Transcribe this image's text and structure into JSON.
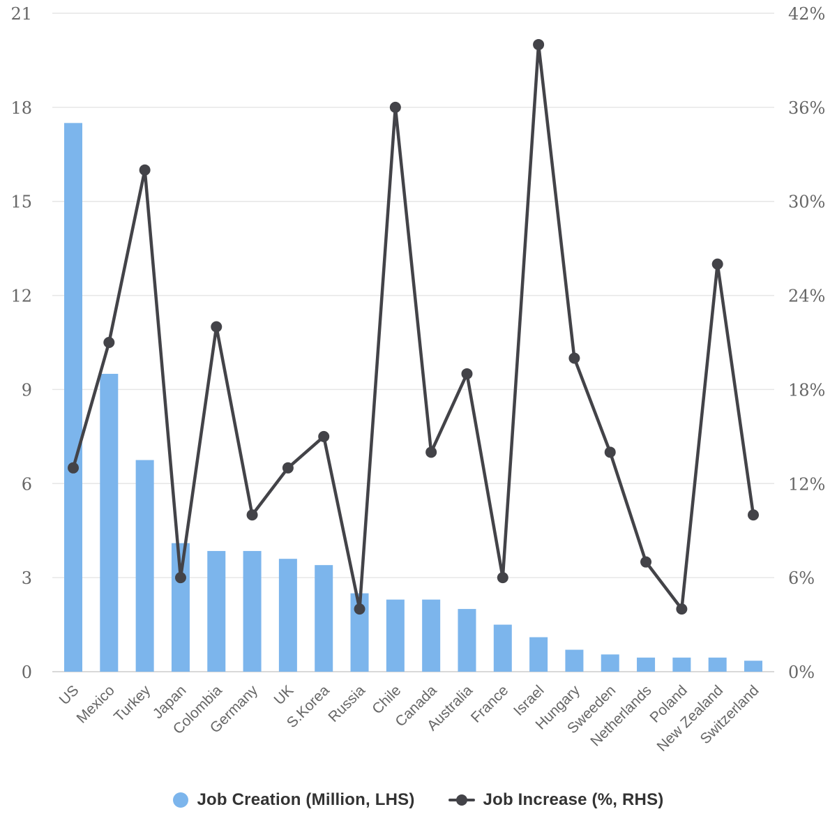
{
  "chart_data": {
    "type": "combo-bar-line",
    "title": "",
    "categories": [
      "US",
      "Mexico",
      "Turkey",
      "Japan",
      "Colombia",
      "Germany",
      "UK",
      "S.Korea",
      "Russia",
      "Chile",
      "Canada",
      "Australia",
      "France",
      "Israel",
      "Hungary",
      "Sweeden",
      "Netherlands",
      "Poland",
      "New Zealand",
      "Switzerland"
    ],
    "series": [
      {
        "name": "Job Creation (Million, LHS)",
        "type": "bar",
        "axis": "left",
        "color": "#7cb5ec",
        "values": [
          17.5,
          9.5,
          6.75,
          4.1,
          3.85,
          3.85,
          3.6,
          3.4,
          2.5,
          2.3,
          2.3,
          2.0,
          1.5,
          1.1,
          0.7,
          0.55,
          0.45,
          0.45,
          0.45,
          0.35
        ]
      },
      {
        "name": "Job Increase (%, RHS)",
        "type": "line",
        "axis": "right",
        "color": "#434348",
        "values": [
          13,
          21,
          32,
          6,
          22,
          10,
          13,
          15,
          4,
          36,
          14,
          19,
          6,
          40,
          20,
          14,
          7,
          4,
          26,
          10
        ]
      }
    ],
    "left_axis": {
      "min": 0,
      "max": 21,
      "tick_step": 3,
      "tick_labels": [
        "0",
        "3",
        "6",
        "9",
        "12",
        "15",
        "18",
        "21"
      ]
    },
    "right_axis": {
      "min": 0,
      "max": 42,
      "tick_step": 6,
      "tick_labels": [
        "0%",
        "6%",
        "12%",
        "18%",
        "24%",
        "30%",
        "36%",
        "42%"
      ]
    },
    "grid": true,
    "legend_position": "bottom",
    "colors": {
      "bar": "#7cb5ec",
      "line": "#434348",
      "gridline": "#e6e6e6",
      "axis_text": "#666666",
      "legend_text": "#333333"
    }
  }
}
